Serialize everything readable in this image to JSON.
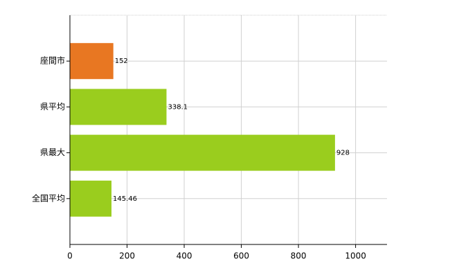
{
  "chart_data": {
    "type": "bar",
    "orientation": "horizontal",
    "categories": [
      "座間市",
      "県平均",
      "県最大",
      "全国平均"
    ],
    "values": [
      152,
      338.1,
      928,
      145.46
    ],
    "colors": [
      "#e87722",
      "#9acd1e",
      "#9acd1e",
      "#9acd1e"
    ],
    "xlim": [
      0,
      1110
    ],
    "xticks": [
      0,
      200,
      400,
      600,
      800,
      1000
    ],
    "grid": true
  }
}
